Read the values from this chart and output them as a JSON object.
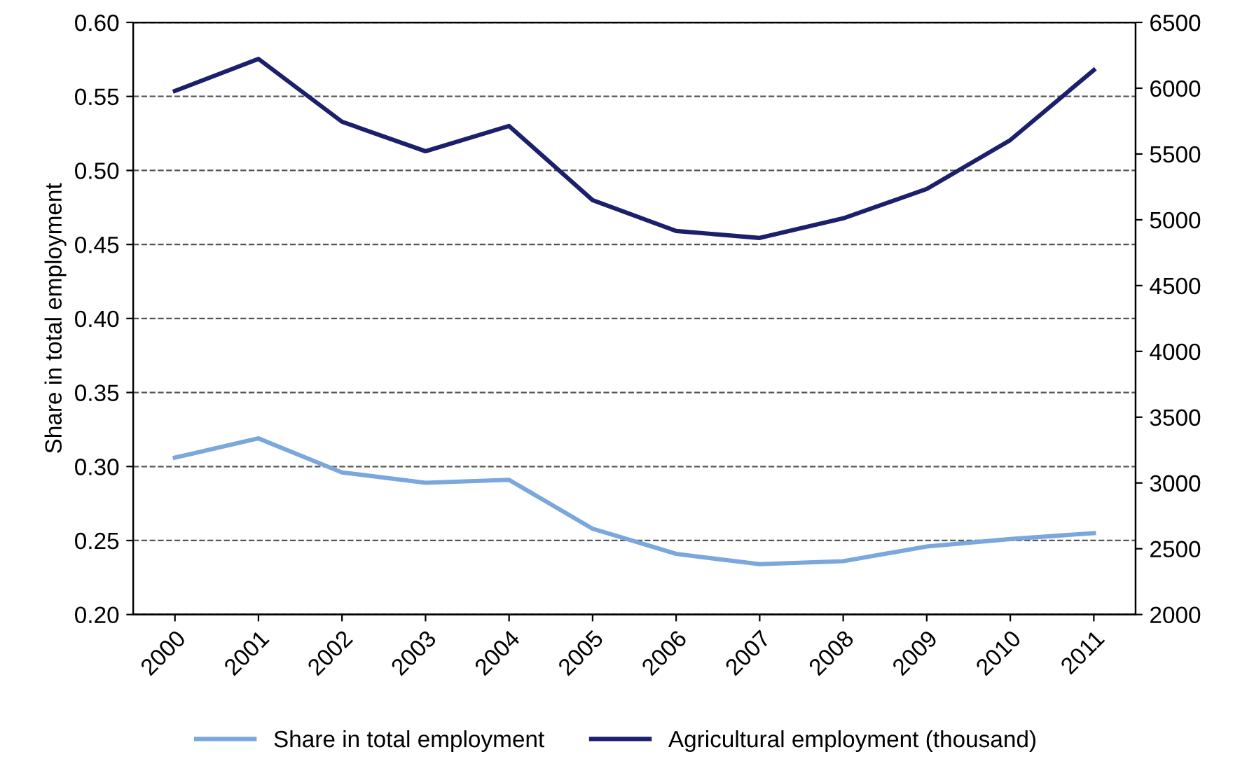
{
  "chart_data": {
    "type": "line",
    "ylabel": "Share in total employment",
    "categories": [
      "2000",
      "2001",
      "2002",
      "2003",
      "2004",
      "2005",
      "2006",
      "2007",
      "2008",
      "2009",
      "2010",
      "2011"
    ],
    "series": [
      {
        "name": "Share in total employment",
        "color": "#7aa7dc",
        "values": [
          0.306,
          0.319,
          0.296,
          0.289,
          0.291,
          0.258,
          0.241,
          0.234,
          0.236,
          0.246,
          0.251,
          0.255
        ]
      },
      {
        "name": "Agricultural employment (thousand)",
        "color": "#1c1f6b",
        "axis": "y2",
        "values": [
          5979,
          6223,
          5745,
          5521,
          5713,
          5149,
          4915,
          4862,
          5011,
          5234,
          5606,
          6138
        ]
      }
    ],
    "ylim": [
      0.2,
      0.6
    ],
    "yticks": [
      {
        "value": 0.2,
        "label": "0.20"
      },
      {
        "value": 0.25,
        "label": "0.25"
      },
      {
        "value": 0.3,
        "label": "0.30"
      },
      {
        "value": 0.35,
        "label": "0.35"
      },
      {
        "value": 0.4,
        "label": "0.40"
      },
      {
        "value": 0.45,
        "label": "0.45"
      },
      {
        "value": 0.5,
        "label": "0.50"
      },
      {
        "value": 0.55,
        "label": "0.55"
      },
      {
        "value": 0.6,
        "label": "0.60"
      }
    ],
    "y2lim": [
      2000,
      6500
    ],
    "y2ticks": [
      2000,
      2500,
      3000,
      3500,
      4000,
      4500,
      5000,
      5500,
      6000,
      6500
    ],
    "grid": "y",
    "legend": "bottom",
    "marker": "none",
    "line_style": "solid"
  }
}
